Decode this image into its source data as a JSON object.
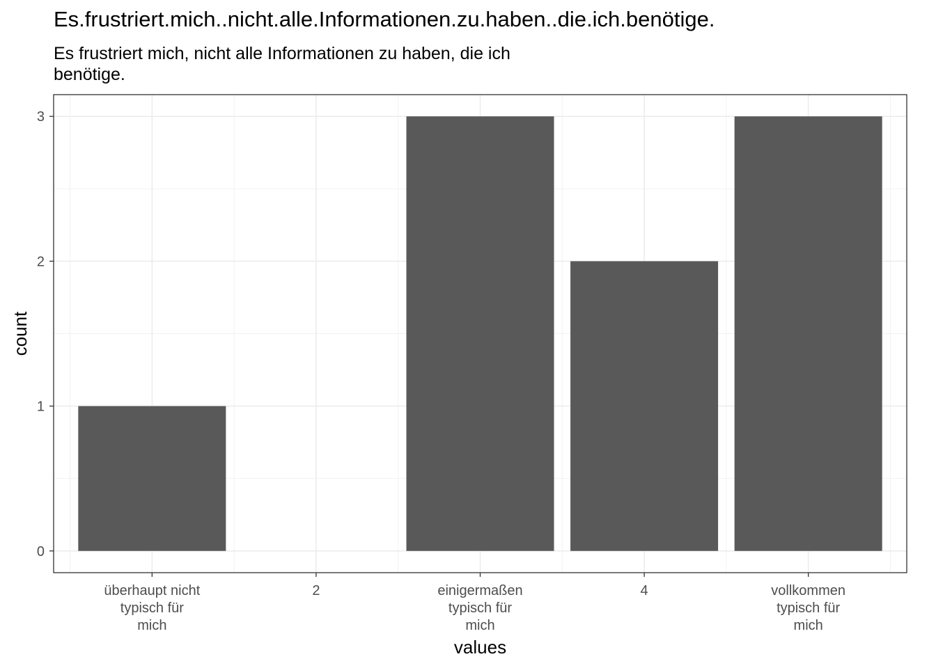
{
  "chart_data": {
    "type": "bar",
    "title": "Es.frustriert.mich..nicht.alle.Informationen.zu.haben..die.ich.benötige.",
    "subtitle_lines": [
      "Es frustriert mich, nicht alle Informationen zu haben, die ich",
      "benötige."
    ],
    "xlabel": "values",
    "ylabel": "count",
    "categories": [
      [
        "überhaupt nicht",
        "typisch für",
        "mich"
      ],
      [
        "2"
      ],
      [
        "einigermaßen",
        "typisch für",
        "mich"
      ],
      [
        "4"
      ],
      [
        "vollkommen",
        "typisch für",
        "mich"
      ]
    ],
    "values": [
      1,
      0,
      3,
      2,
      3
    ],
    "ylim": [
      -0.15,
      3.15
    ],
    "yticks": [
      "0",
      "1",
      "2",
      "3"
    ],
    "grid": true,
    "bar_color": "#595959"
  }
}
